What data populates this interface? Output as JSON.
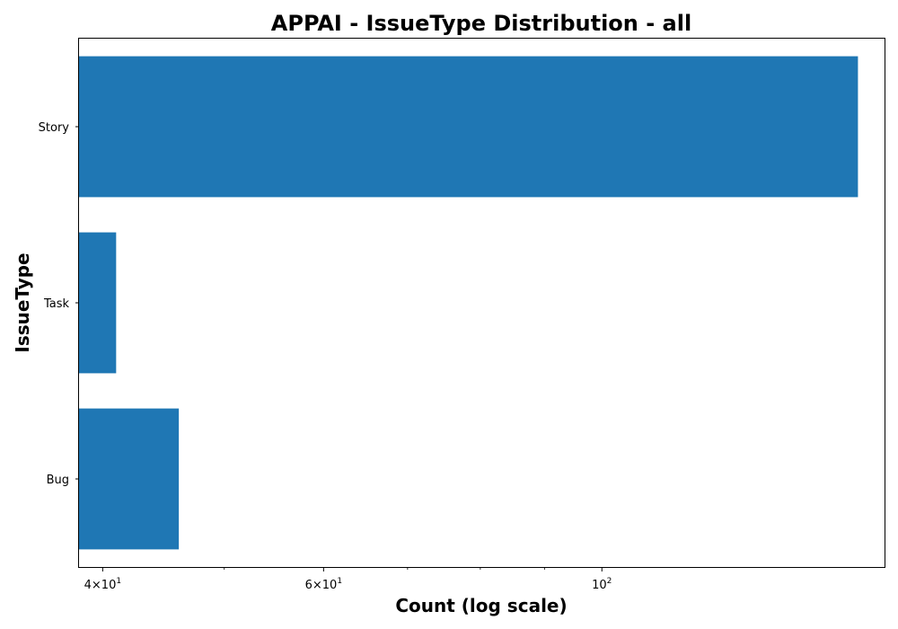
{
  "chart_data": {
    "type": "bar",
    "orientation": "horizontal",
    "title": "APPAI - IssueType Distribution - all",
    "xlabel": "Count (log scale)",
    "ylabel": "IssueType",
    "x_scale": "log",
    "xlim": [
      38.3,
      168
    ],
    "categories": [
      "Story",
      "Task",
      "Bug"
    ],
    "values": [
      160,
      41,
      46
    ],
    "bar_color": "#1f77b4",
    "grid": false,
    "legend": "none",
    "x_major_ticks": [
      {
        "value": 40,
        "mantissa": "4",
        "base": "10",
        "exponent": "1"
      },
      {
        "value": 60,
        "mantissa": "6",
        "base": "10",
        "exponent": "1"
      },
      {
        "value": 100,
        "mantissa": "",
        "base": "10",
        "exponent": "2"
      }
    ],
    "x_minor_ticks": [
      50,
      70,
      80,
      90
    ]
  }
}
